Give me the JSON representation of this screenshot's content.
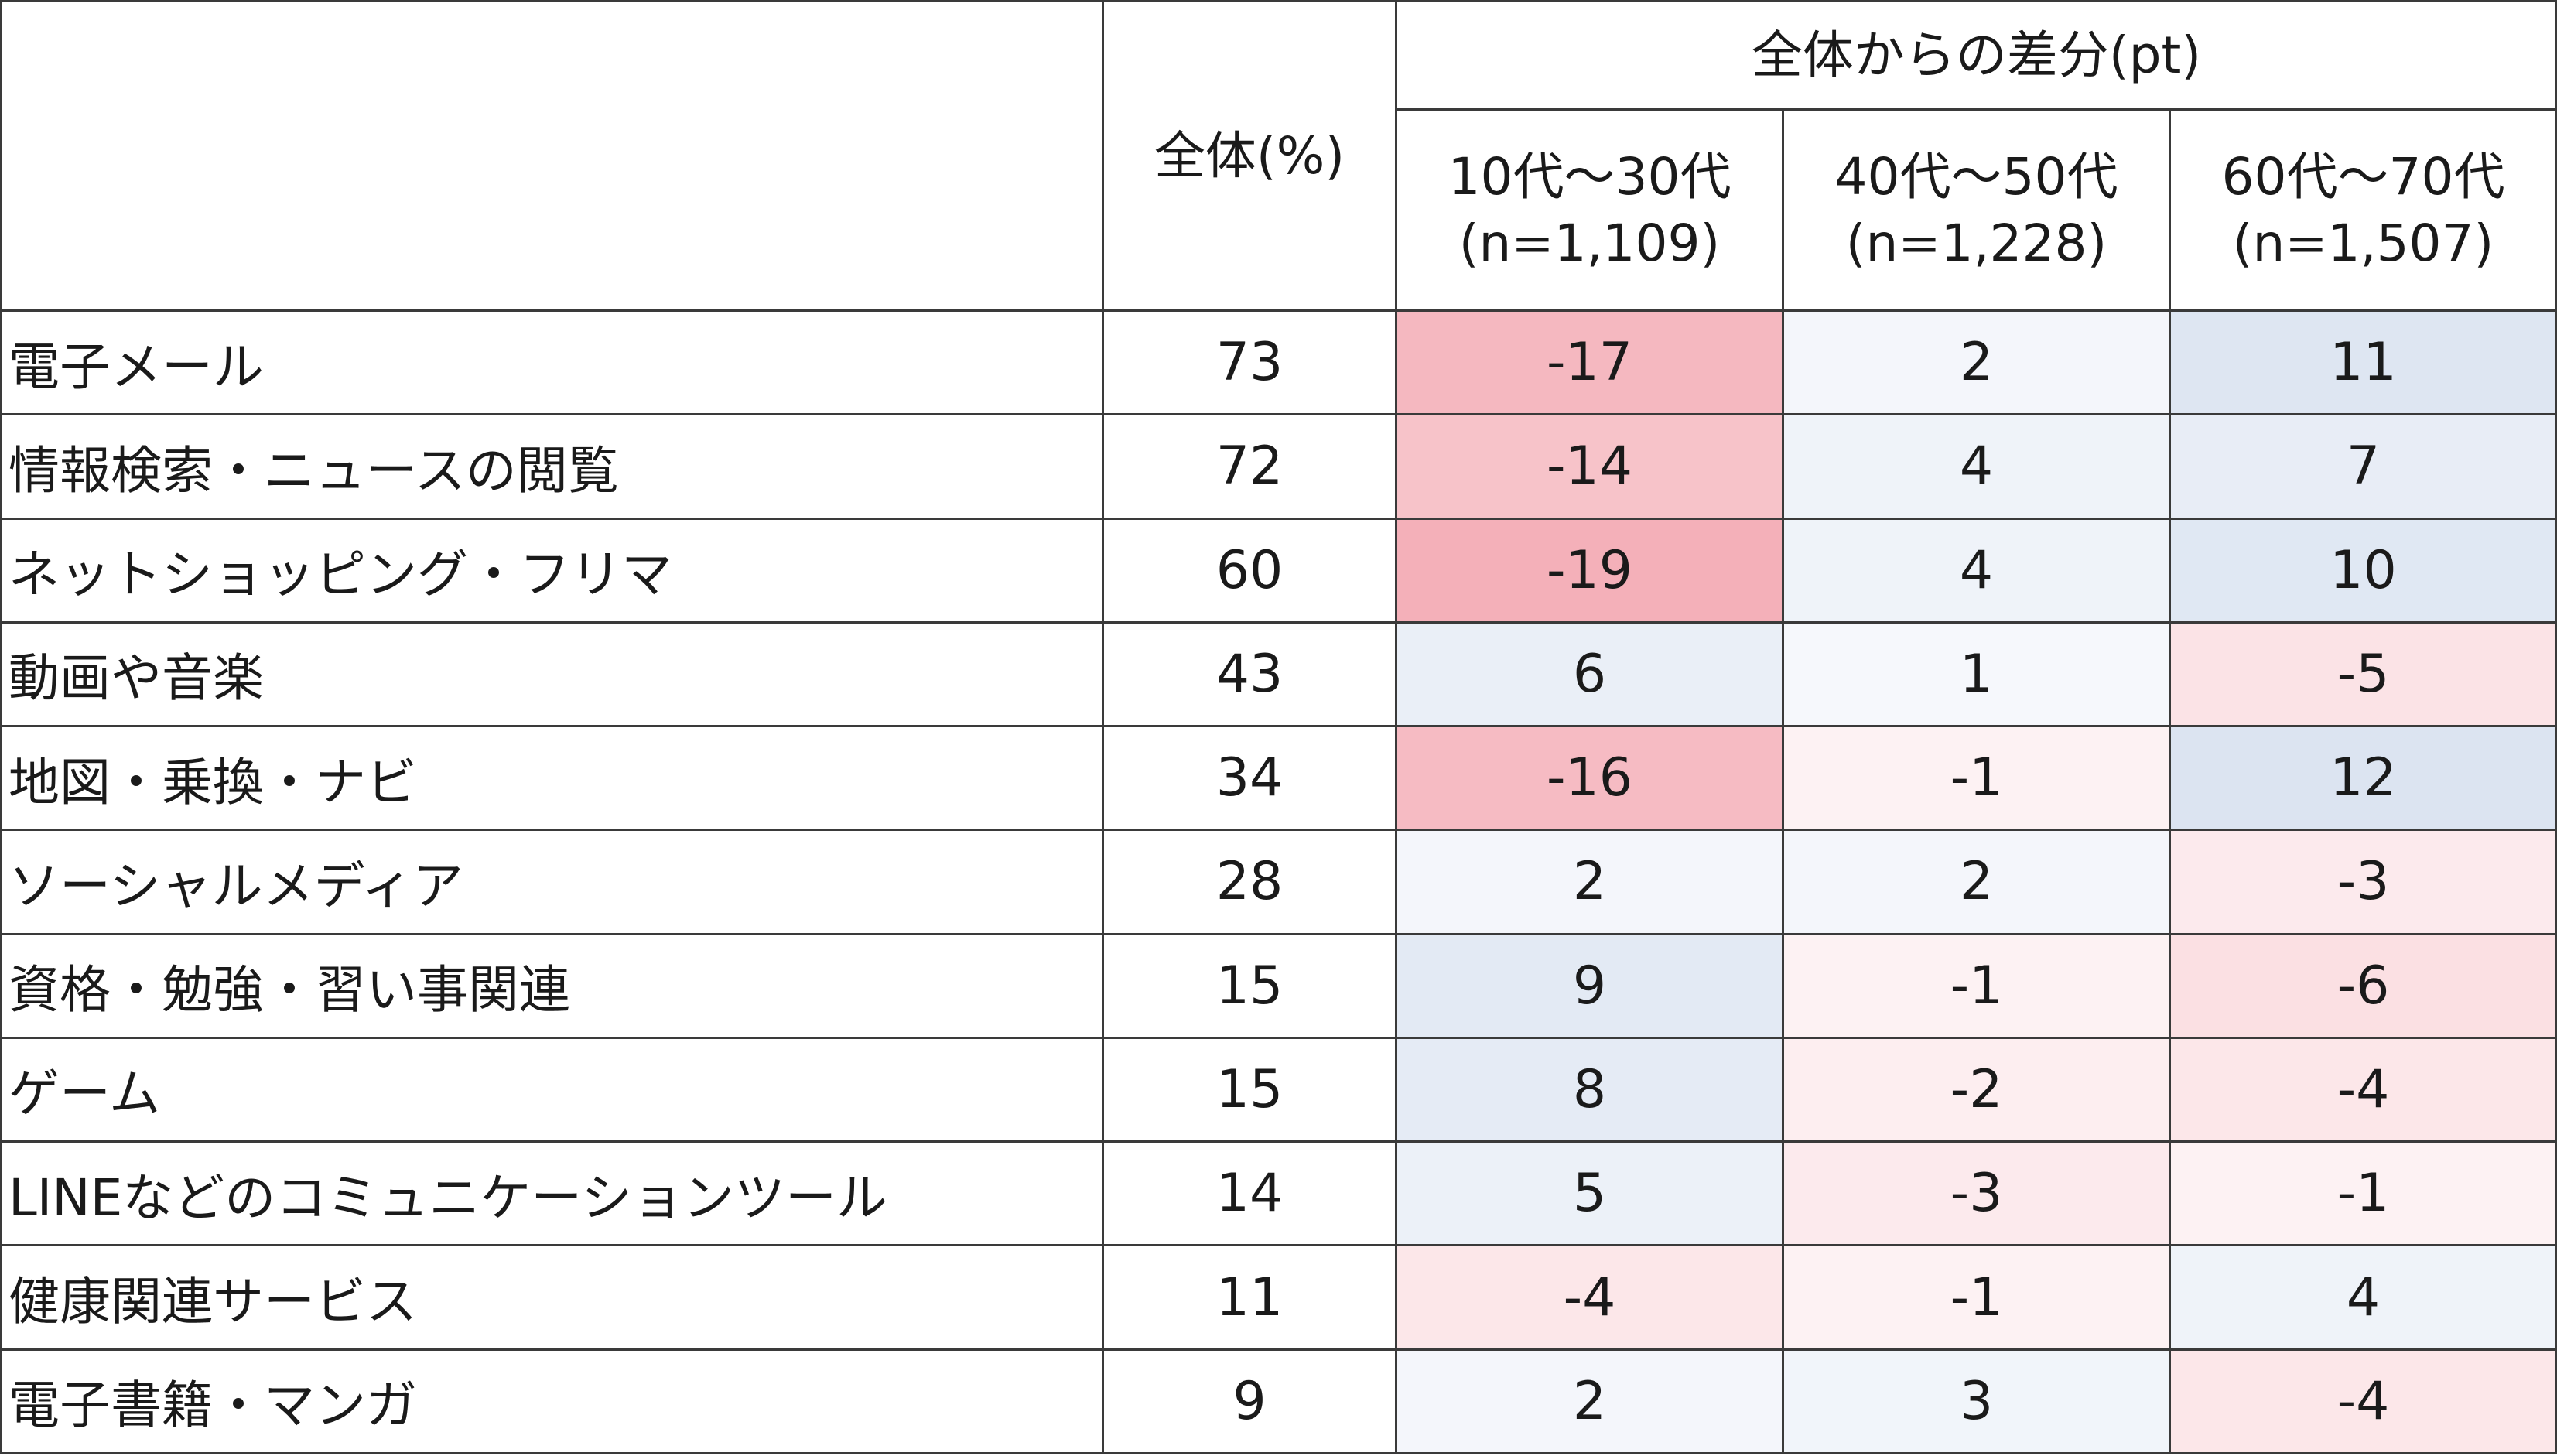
{
  "chart_data": {
    "type": "table",
    "header": {
      "group_label": "全体からの差分(pt)",
      "overall_label": "全体(%)",
      "columns": [
        {
          "age": "10代～30代",
          "n": "(n=1,109)"
        },
        {
          "age": "40代～50代",
          "n": "(n=1,228)"
        },
        {
          "age": "60代～70代",
          "n": "(n=1,507)"
        }
      ]
    },
    "rows": [
      {
        "label": "電子メール",
        "overall": "73",
        "diffs": [
          -17,
          2,
          11
        ]
      },
      {
        "label": "情報検索・ニュースの閲覧",
        "overall": "72",
        "diffs": [
          -14,
          4,
          7
        ]
      },
      {
        "label": "ネットショッピング・フリマ",
        "overall": "60",
        "diffs": [
          -19,
          4,
          10
        ]
      },
      {
        "label": "動画や音楽",
        "overall": "43",
        "diffs": [
          6,
          1,
          -5
        ]
      },
      {
        "label": "地図・乗換・ナビ",
        "overall": "34",
        "diffs": [
          -16,
          -1,
          12
        ]
      },
      {
        "label": "ソーシャルメディア",
        "overall": "28",
        "diffs": [
          2,
          2,
          -3
        ]
      },
      {
        "label": "資格・勉強・習い事関連",
        "overall": "15",
        "diffs": [
          9,
          -1,
          -6
        ]
      },
      {
        "label": "ゲーム",
        "overall": "15",
        "diffs": [
          8,
          -2,
          -4
        ]
      },
      {
        "label": "LINEなどのコミュニケーションツール",
        "overall": "14",
        "diffs": [
          5,
          -3,
          -1
        ]
      },
      {
        "label": "健康関連サービス",
        "overall": "11",
        "diffs": [
          -4,
          -1,
          4
        ]
      },
      {
        "label": "電子書籍・マンガ",
        "overall": "9",
        "diffs": [
          2,
          3,
          -4
        ]
      }
    ],
    "colors": {
      "negative": "#f4aeb7",
      "positive": "#c9d6ea",
      "neutral": "#ffffff"
    }
  }
}
